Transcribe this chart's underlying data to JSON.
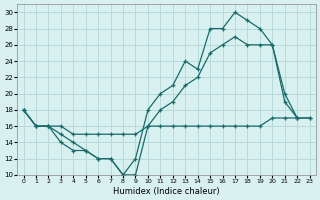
{
  "bg_color": "#d8f0f0",
  "grid_color": "#b8dada",
  "line_color": "#1a6b6b",
  "xlabel": "Humidex (Indice chaleur)",
  "ylim": [
    10,
    31
  ],
  "xlim": [
    -0.5,
    23.5
  ],
  "yticks": [
    10,
    12,
    14,
    16,
    18,
    20,
    22,
    24,
    26,
    28,
    30
  ],
  "xticks": [
    0,
    1,
    2,
    3,
    4,
    5,
    6,
    7,
    8,
    9,
    10,
    11,
    12,
    13,
    14,
    15,
    16,
    17,
    18,
    19,
    20,
    21,
    22,
    23
  ],
  "line1_x": [
    0,
    1,
    2,
    3,
    4,
    5,
    6,
    7,
    8,
    9,
    10,
    11,
    12,
    13,
    14,
    15,
    16,
    17,
    18,
    19,
    20,
    21,
    22
  ],
  "line1_y": [
    18,
    16,
    16,
    15,
    14,
    13,
    12,
    12,
    10,
    12,
    18,
    20,
    21,
    24,
    23,
    28,
    28,
    30,
    29,
    28,
    26,
    20,
    17
  ],
  "line2_x": [
    0,
    1,
    2,
    3,
    4,
    5,
    6,
    7,
    8,
    9,
    10,
    11,
    12,
    13,
    14,
    15,
    16,
    17,
    18,
    19,
    20,
    21,
    22,
    23
  ],
  "line2_y": [
    18,
    16,
    16,
    14,
    13,
    13,
    12,
    12,
    10,
    10,
    16,
    18,
    19,
    21,
    22,
    25,
    26,
    27,
    26,
    26,
    26,
    19,
    17,
    17
  ],
  "line3_x": [
    0,
    1,
    2,
    3,
    4,
    5,
    6,
    7,
    8,
    9,
    10,
    11,
    12,
    13,
    14,
    15,
    16,
    17,
    18,
    19,
    20,
    21,
    22,
    23
  ],
  "line3_y": [
    18,
    16,
    16,
    16,
    15,
    15,
    15,
    15,
    15,
    15,
    16,
    16,
    16,
    16,
    16,
    16,
    16,
    16,
    16,
    16,
    17,
    17,
    17,
    17
  ]
}
